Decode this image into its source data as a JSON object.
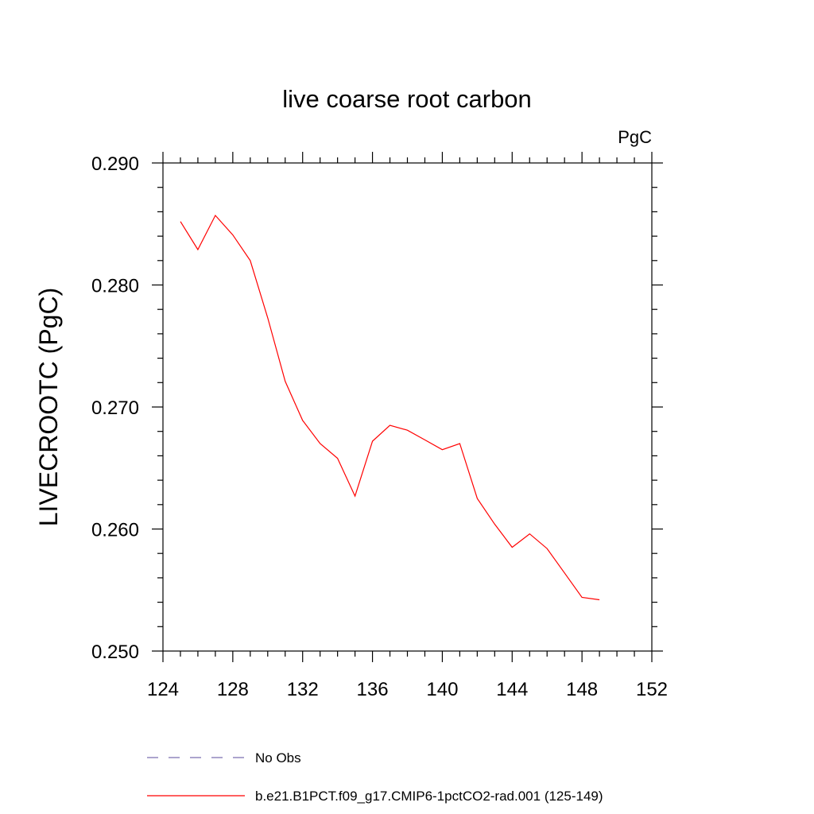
{
  "chart_data": {
    "type": "line",
    "title": "live coarse root carbon",
    "units_label": "PgC",
    "ylabel": "LIVECROOTC  (PgC)",
    "xlabel": "",
    "xlim": [
      124,
      152
    ],
    "ylim": [
      0.25,
      0.29
    ],
    "xticks": [
      124,
      128,
      132,
      136,
      140,
      144,
      148,
      152
    ],
    "xtick_labels": [
      "124",
      "128",
      "132",
      "136",
      "140",
      "144",
      "148",
      "152"
    ],
    "yticks": [
      0.25,
      0.26,
      0.27,
      0.28,
      0.29
    ],
    "ytick_labels": [
      "0.250",
      "0.260",
      "0.270",
      "0.280",
      "0.290"
    ],
    "grid": false,
    "legend_position": "bottom",
    "series": [
      {
        "name": "b.e21.B1PCT.f09_g17.CMIP6-1pctCO2-rad.001 (125-149)",
        "color": "#ff0000",
        "style": "solid",
        "x": [
          125,
          126,
          127,
          128,
          129,
          130,
          131,
          132,
          133,
          134,
          135,
          136,
          137,
          138,
          139,
          140,
          141,
          142,
          143,
          144,
          145,
          146,
          147,
          148,
          149
        ],
        "y": [
          0.2852,
          0.2829,
          0.2857,
          0.2841,
          0.282,
          0.2773,
          0.2721,
          0.2689,
          0.267,
          0.2658,
          0.2627,
          0.2672,
          0.2685,
          0.2681,
          0.2673,
          0.2665,
          0.267,
          0.2625,
          0.2604,
          0.2585,
          0.2596,
          0.2584,
          0.2564,
          0.2544,
          0.2542
        ]
      }
    ],
    "legend": [
      {
        "label": "No Obs",
        "color": "#7a6fb0",
        "style": "dashed"
      },
      {
        "label": "b.e21.B1PCT.f09_g17.CMIP6-1pctCO2-rad.001 (125-149)",
        "color": "#ff0000",
        "style": "solid"
      }
    ]
  }
}
